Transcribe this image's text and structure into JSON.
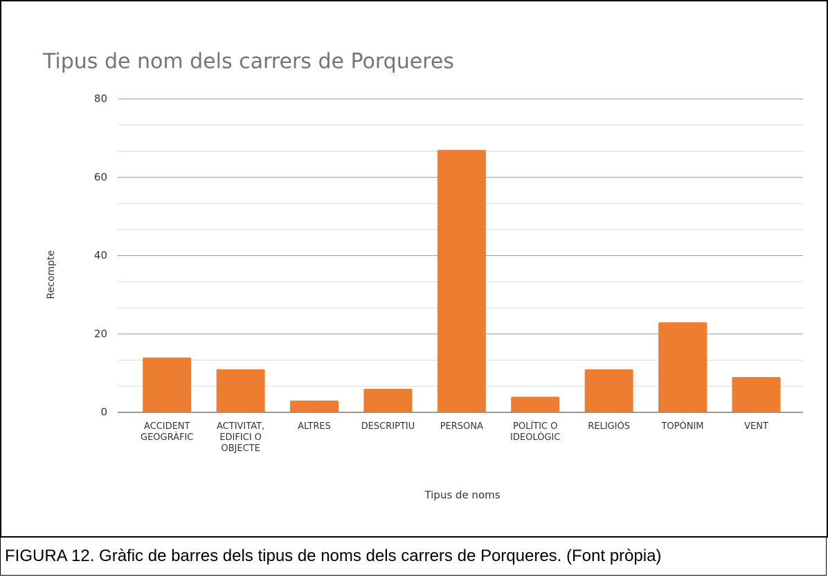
{
  "chart_data": {
    "type": "bar",
    "title": "Tipus de nom dels carrers de Porqueres",
    "categories": [
      "ACCIDENT\nGEOGRÀFIC",
      "ACTIVITAT,\nEDIFICI O\nOBJECTE",
      "ALTRES",
      "DESCRIPTIU",
      "PERSONA",
      "POLÍTIC O\nIDEOLÒGIC",
      "RELIGIÓS",
      "TOPÒNIM",
      "VENT"
    ],
    "values": [
      14,
      11,
      3,
      6,
      67,
      4,
      11,
      23,
      9
    ],
    "color": "#ed7d31",
    "ylim": [
      0,
      80
    ],
    "yticks": [
      0,
      20,
      40,
      60,
      80
    ],
    "grid": true,
    "y_label": "Recompte",
    "x_label": "Tipus de noms"
  },
  "caption": "FIGURA 12. Gràfic de barres dels tipus de noms dels carrers de Porqueres. (Font pròpia)"
}
